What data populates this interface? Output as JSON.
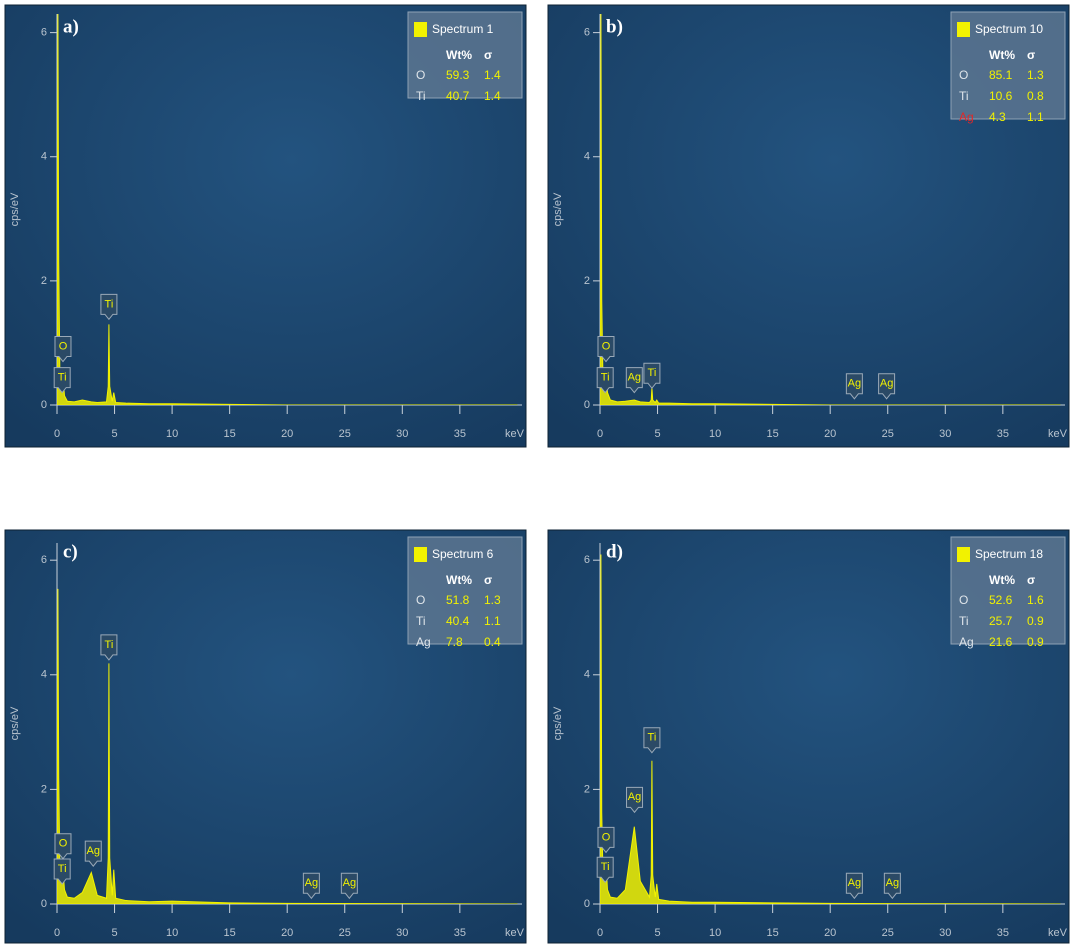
{
  "chart_data": [
    {
      "type": "line",
      "title": "a)",
      "ylabel": "cps/eV",
      "xlabel": "keV",
      "xlim": [
        0,
        40.4
      ],
      "ylim": [
        0,
        6.3
      ],
      "xticks": [
        0,
        5,
        10,
        15,
        20,
        25,
        30,
        35
      ],
      "yticks": [
        0,
        2,
        4,
        6
      ],
      "series": [
        {
          "name": "Spectrum 1",
          "color": "#f2f200",
          "x": [
            0,
            0.08,
            0.15,
            0.25,
            0.4,
            0.52,
            0.65,
            0.9,
            1.5,
            2.2,
            2.98,
            3.5,
            4.3,
            4.45,
            4.51,
            4.58,
            4.8,
            4.93,
            5.1,
            6,
            8,
            10,
            15,
            20,
            40
          ],
          "values": [
            0,
            6.3,
            2.3,
            0.5,
            0.25,
            0.45,
            0.15,
            0.06,
            0.05,
            0.08,
            0.05,
            0.04,
            0.05,
            0.3,
            1.3,
            0.3,
            0.06,
            0.2,
            0.04,
            0.03,
            0.02,
            0.02,
            0.01,
            0,
            0
          ]
        }
      ],
      "annotations": [
        {
          "text": "O",
          "x": 0.52,
          "y": 0.7
        },
        {
          "text": "Ti",
          "x": 0.45,
          "y": 0.2
        },
        {
          "text": "Ti",
          "x": 4.51,
          "y": 1.38
        }
      ],
      "legend": {
        "columns": [
          "Wt%",
          "σ"
        ],
        "rows": [
          {
            "element": "O",
            "wt": 59.3,
            "sigma": 1.4
          },
          {
            "element": "Ti",
            "wt": 40.7,
            "sigma": 1.4
          }
        ]
      }
    },
    {
      "type": "line",
      "title": "b)",
      "ylabel": "cps/eV",
      "xlabel": "keV",
      "xlim": [
        0,
        40.4
      ],
      "ylim": [
        0,
        6.3
      ],
      "xticks": [
        0,
        5,
        10,
        15,
        20,
        25,
        30,
        35
      ],
      "yticks": [
        0,
        2,
        4,
        6
      ],
      "series": [
        {
          "name": "Spectrum 10",
          "color": "#f2f200",
          "x": [
            0,
            0.08,
            0.15,
            0.25,
            0.4,
            0.52,
            0.65,
            0.9,
            1.5,
            2.2,
            2.98,
            3.5,
            4.3,
            4.45,
            4.51,
            4.58,
            4.8,
            4.93,
            5.1,
            6,
            8,
            10,
            15,
            20,
            40
          ],
          "values": [
            0,
            6.3,
            1.7,
            0.5,
            0.3,
            0.6,
            0.2,
            0.08,
            0.05,
            0.06,
            0.08,
            0.05,
            0.04,
            0.08,
            0.28,
            0.08,
            0.04,
            0.08,
            0.03,
            0.03,
            0.02,
            0.02,
            0.01,
            0,
            0
          ]
        }
      ],
      "annotations": [
        {
          "text": "O",
          "x": 0.52,
          "y": 0.7
        },
        {
          "text": "Ti",
          "x": 0.45,
          "y": 0.2
        },
        {
          "text": "Ag",
          "x": 2.98,
          "y": 0.2
        },
        {
          "text": "Ti",
          "x": 4.51,
          "y": 0.27
        },
        {
          "text": "Ag",
          "x": 22.1,
          "y": 0.1
        },
        {
          "text": "Ag",
          "x": 24.9,
          "y": 0.1
        }
      ],
      "legend": {
        "columns": [
          "Wt%",
          "σ"
        ],
        "rows": [
          {
            "element": "O",
            "wt": 85.1,
            "sigma": 1.3
          },
          {
            "element": "Ti",
            "wt": 10.6,
            "sigma": 0.8
          },
          {
            "element": "Ag",
            "wt": 4.3,
            "sigma": 1.1,
            "color": "#e02828"
          }
        ]
      }
    },
    {
      "type": "line",
      "title": "c)",
      "ylabel": "cps/eV",
      "xlabel": "keV",
      "xlim": [
        0,
        40.4
      ],
      "ylim": [
        0,
        6.3
      ],
      "xticks": [
        0,
        5,
        10,
        15,
        20,
        25,
        30,
        35
      ],
      "yticks": [
        0,
        2,
        4,
        6
      ],
      "series": [
        {
          "name": "Spectrum 6",
          "color": "#f2f200",
          "x": [
            0,
            0.08,
            0.15,
            0.25,
            0.4,
            0.52,
            0.65,
            0.9,
            1.5,
            2.2,
            2.98,
            3.5,
            4.3,
            4.45,
            4.51,
            4.58,
            4.8,
            4.93,
            5.1,
            6,
            8,
            10,
            15,
            20,
            40
          ],
          "values": [
            0,
            5.5,
            2.2,
            0.6,
            0.35,
            0.6,
            0.25,
            0.12,
            0.1,
            0.2,
            0.55,
            0.15,
            0.1,
            0.8,
            4.2,
            0.8,
            0.15,
            0.6,
            0.1,
            0.06,
            0.04,
            0.05,
            0.02,
            0.01,
            0
          ]
        }
      ],
      "annotations": [
        {
          "text": "O",
          "x": 0.52,
          "y": 0.79
        },
        {
          "text": "Ti",
          "x": 0.45,
          "y": 0.35
        },
        {
          "text": "Ag",
          "x": 3.15,
          "y": 0.66
        },
        {
          "text": "Ti",
          "x": 4.51,
          "y": 4.26
        },
        {
          "text": "Ag",
          "x": 22.1,
          "y": 0.1
        },
        {
          "text": "Ag",
          "x": 25.4,
          "y": 0.1
        }
      ],
      "legend": {
        "columns": [
          "Wt%",
          "σ"
        ],
        "rows": [
          {
            "element": "O",
            "wt": 51.8,
            "sigma": 1.3
          },
          {
            "element": "Ti",
            "wt": 40.4,
            "sigma": 1.1
          },
          {
            "element": "Ag",
            "wt": 7.8,
            "sigma": 0.4
          }
        ]
      }
    },
    {
      "type": "line",
      "title": "d)",
      "ylabel": "cps/eV",
      "xlabel": "keV",
      "xlim": [
        0,
        40.4
      ],
      "ylim": [
        0,
        6.3
      ],
      "xticks": [
        0,
        5,
        10,
        15,
        20,
        25,
        30,
        35
      ],
      "yticks": [
        0,
        2,
        4,
        6
      ],
      "series": [
        {
          "name": "Spectrum 18",
          "color": "#f2f200",
          "x": [
            0,
            0.08,
            0.15,
            0.25,
            0.4,
            0.52,
            0.65,
            0.9,
            1.5,
            2.2,
            2.98,
            3.5,
            4.3,
            4.45,
            4.51,
            4.58,
            4.8,
            4.93,
            5.1,
            6,
            8,
            10,
            15,
            20,
            40
          ],
          "values": [
            0,
            6.1,
            1.6,
            0.6,
            0.4,
            0.7,
            0.25,
            0.12,
            0.1,
            0.25,
            1.35,
            0.4,
            0.12,
            0.5,
            2.5,
            0.5,
            0.12,
            0.35,
            0.08,
            0.05,
            0.03,
            0.03,
            0.02,
            0.01,
            0
          ]
        }
      ],
      "annotations": [
        {
          "text": "O",
          "x": 0.52,
          "y": 0.9
        },
        {
          "text": "Ti",
          "x": 0.45,
          "y": 0.38
        },
        {
          "text": "Ag",
          "x": 3.0,
          "y": 1.6
        },
        {
          "text": "Ti",
          "x": 4.51,
          "y": 2.64
        },
        {
          "text": "Ag",
          "x": 22.1,
          "y": 0.1
        },
        {
          "text": "Ag",
          "x": 25.4,
          "y": 0.1
        }
      ],
      "legend": {
        "columns": [
          "Wt%",
          "σ"
        ],
        "rows": [
          {
            "element": "O",
            "wt": 52.6,
            "sigma": 1.6
          },
          {
            "element": "Ti",
            "wt": 25.7,
            "sigma": 0.9
          },
          {
            "element": "Ag",
            "wt": 21.6,
            "sigma": 0.9
          }
        ]
      }
    }
  ]
}
